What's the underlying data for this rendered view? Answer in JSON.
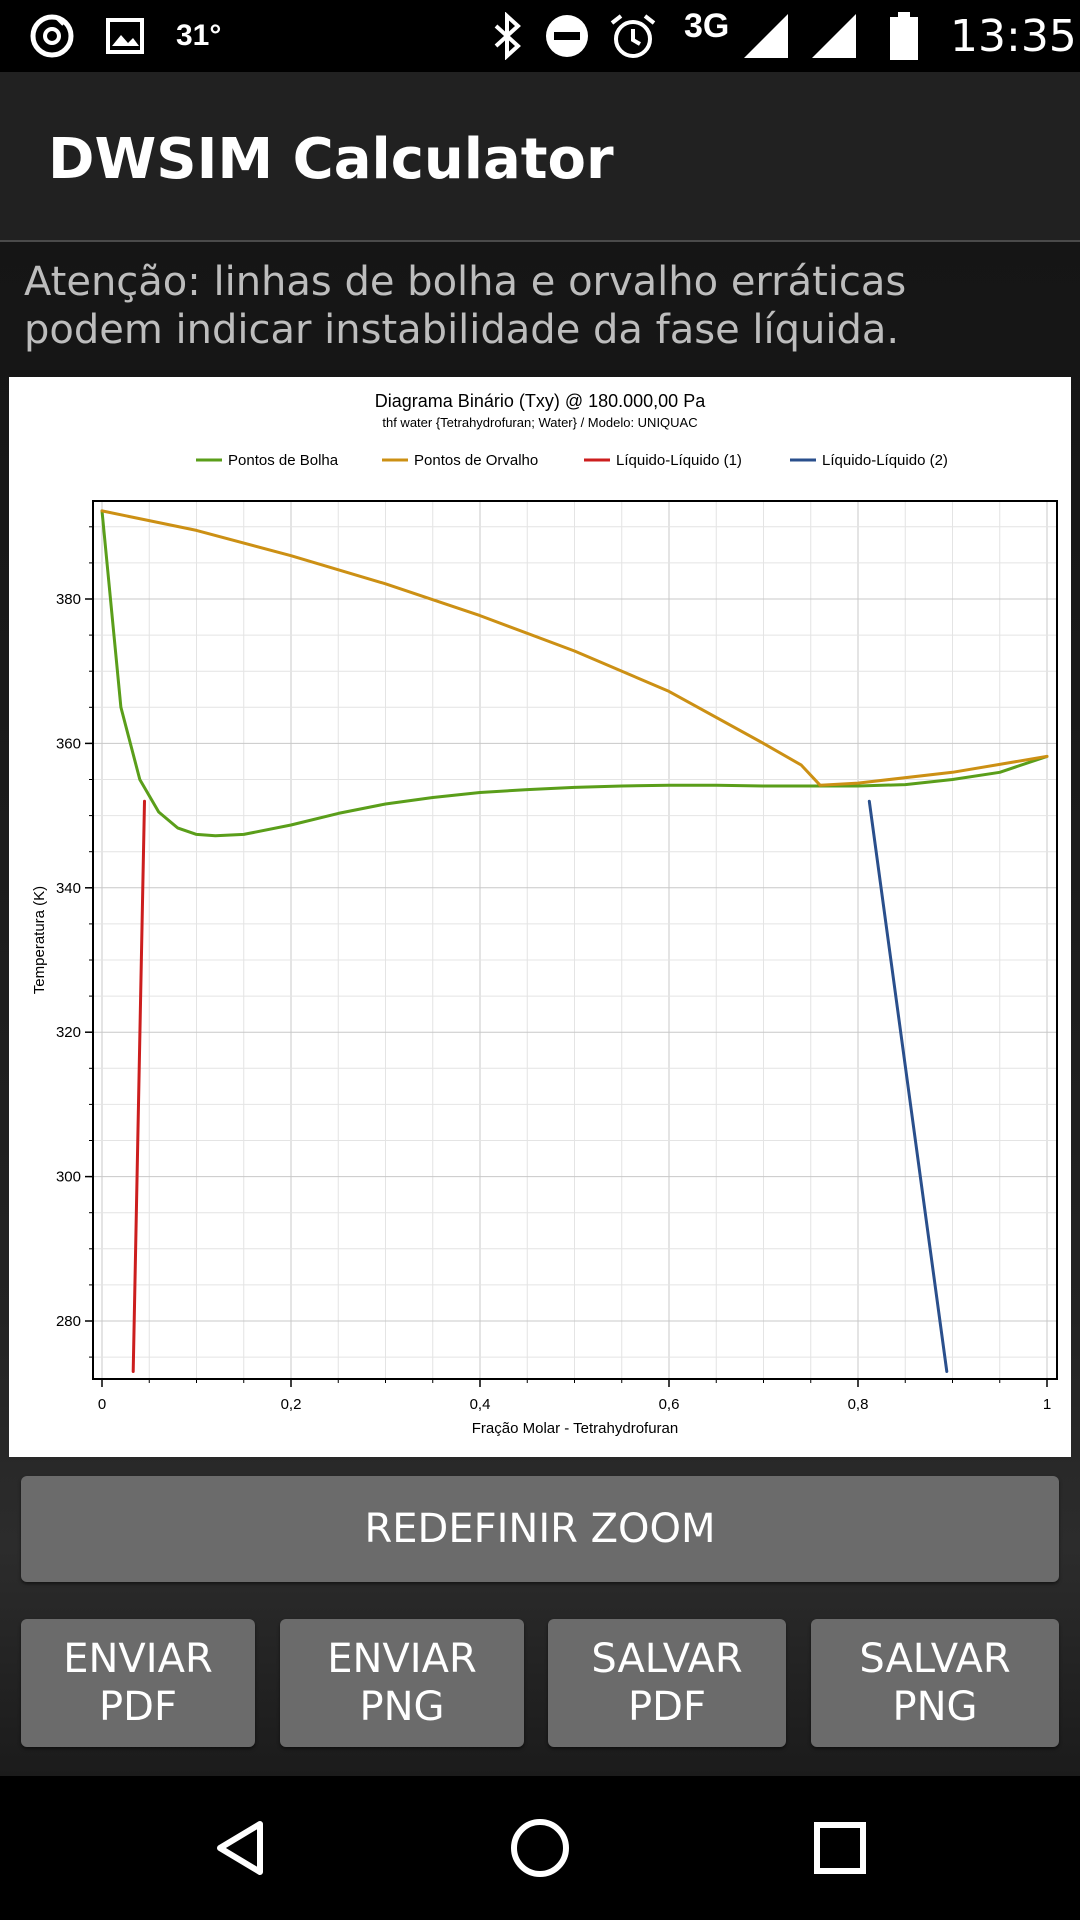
{
  "status_bar": {
    "temperature": "31°",
    "network": "3G",
    "time": "13:35",
    "icons": [
      "app-circle-icon",
      "image-icon",
      "bluetooth-icon",
      "do-not-disturb-icon",
      "alarm-icon",
      "signal-icon",
      "signal-icon",
      "battery-icon"
    ]
  },
  "app_bar": {
    "title": "DWSIM Calculator"
  },
  "warning": "Atenção: linhas de bolha e orvalho erráticas podem indicar instabilidade da fase líquida.",
  "chart_data": {
    "type": "line",
    "title": "Diagrama Binário (Txy) @ 180.000,00 Pa",
    "subtitle": "thf water {Tetrahydrofuran; Water} / Modelo: UNIQUAC",
    "xlabel": "Fração Molar - Tetrahydrofuran",
    "ylabel": "Temperatura (K)",
    "xlim": [
      -0.01,
      1.01
    ],
    "ylim": [
      272,
      393
    ],
    "xticks": [
      0,
      0.2,
      0.4,
      0.6,
      0.8,
      1
    ],
    "xtick_labels": [
      "0",
      "0,2",
      "0,4",
      "0,6",
      "0,8",
      "1"
    ],
    "yticks": [
      280,
      300,
      320,
      340,
      360,
      380
    ],
    "ytick_labels": [
      "280",
      "300",
      "320",
      "340",
      "360",
      "380"
    ],
    "grid": true,
    "legend_position": "top",
    "series": [
      {
        "name": "Pontos de Bolha",
        "color": "#5a9e1a",
        "x": [
          0,
          0.02,
          0.04,
          0.06,
          0.08,
          0.1,
          0.12,
          0.15,
          0.2,
          0.25,
          0.3,
          0.35,
          0.4,
          0.45,
          0.5,
          0.55,
          0.6,
          0.65,
          0.7,
          0.76,
          0.8,
          0.85,
          0.9,
          0.95,
          1.0
        ],
        "y": [
          392.2,
          365,
          355,
          350.5,
          348.3,
          347.4,
          347.2,
          347.4,
          348.7,
          350.3,
          351.6,
          352.5,
          353.2,
          353.6,
          353.9,
          354.1,
          354.2,
          354.2,
          354.1,
          354.1,
          354.1,
          354.3,
          355,
          356,
          358.2
        ]
      },
      {
        "name": "Pontos de Orvalho",
        "color": "#cc9014",
        "x": [
          0,
          0.1,
          0.2,
          0.3,
          0.4,
          0.5,
          0.6,
          0.7,
          0.74,
          0.76,
          0.8,
          0.9,
          1.0
        ],
        "y": [
          392.2,
          389.5,
          386,
          382.1,
          377.7,
          372.8,
          367.2,
          360,
          357,
          354.2,
          354.5,
          356,
          358.2
        ]
      },
      {
        "name": "Líquido-Líquido (1)",
        "color": "#cc1e1e",
        "x": [
          0.033,
          0.045
        ],
        "y": [
          273,
          352
        ]
      },
      {
        "name": "Líquido-Líquido (2)",
        "color": "#2a4f8c",
        "x": [
          0.812,
          0.894
        ],
        "y": [
          352,
          273
        ]
      }
    ]
  },
  "buttons": {
    "reset_zoom": "REDEFINIR ZOOM",
    "send_pdf": "ENVIAR\nPDF",
    "send_png": "ENVIAR\nPNG",
    "save_pdf": "SALVAR\nPDF",
    "save_png": "SALVAR\nPNG"
  },
  "nav_bar": {
    "icons": [
      "back-icon",
      "home-icon",
      "recents-icon"
    ]
  }
}
